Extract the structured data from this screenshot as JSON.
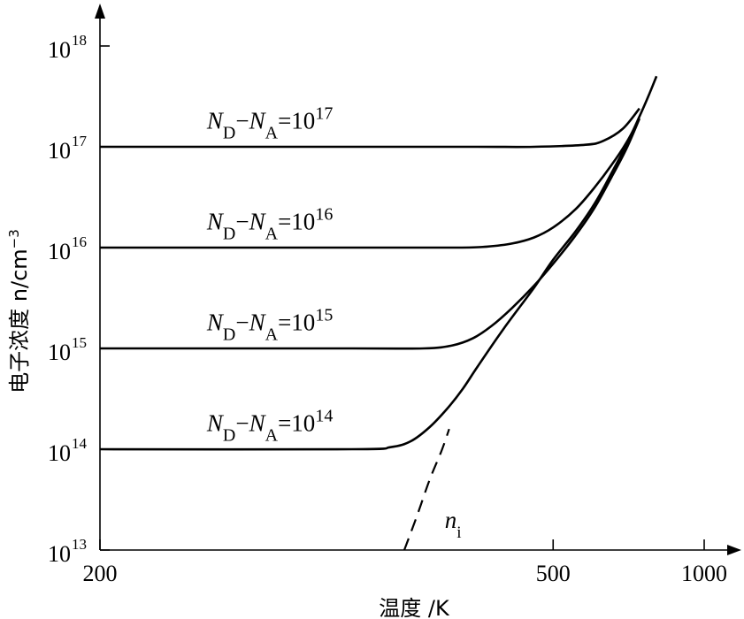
{
  "chart_data": {
    "type": "line",
    "xlabel": "温度 /K",
    "ylabel": "电子浓度 n/cm",
    "ylabel_exponent": "−3",
    "xlim": [
      200,
      1000
    ],
    "ylim_exponents": [
      13,
      18
    ],
    "y_scale": "log",
    "x_ticks": [
      {
        "value": 200,
        "label": "200"
      },
      {
        "value": 500,
        "label": "500"
      },
      {
        "value": 1000,
        "label": "1000"
      }
    ],
    "y_ticks": [
      {
        "exp": 13,
        "base": "10",
        "sup": "13"
      },
      {
        "exp": 14,
        "base": "10",
        "sup": "14"
      },
      {
        "exp": 15,
        "base": "10",
        "sup": "15"
      },
      {
        "exp": 16,
        "base": "10",
        "sup": "16"
      },
      {
        "exp": 17,
        "base": "10",
        "sup": "17"
      },
      {
        "exp": 18,
        "base": "10",
        "sup": "18"
      }
    ],
    "series": [
      {
        "label_parts": {
          "n1": "N",
          "s1": "D",
          "minus": "−",
          "n2": "N",
          "s2": "A",
          "eq": "=10",
          "sup": "17"
        },
        "label_at": [
          233,
          17.18
        ],
        "style": "solid",
        "points": [
          [
            200,
            17.0
          ],
          [
            300,
            17.0
          ],
          [
            400,
            17.0
          ],
          [
            470,
            17.0
          ],
          [
            560,
            17.02
          ],
          [
            600,
            17.06
          ],
          [
            650,
            17.18
          ],
          [
            700,
            17.38
          ]
        ]
      },
      {
        "label_parts": {
          "n1": "N",
          "s1": "D",
          "minus": "−",
          "n2": "N",
          "s2": "A",
          "eq": "=10",
          "sup": "16"
        },
        "label_at": [
          233,
          16.18
        ],
        "style": "solid",
        "points": [
          [
            200,
            16.0
          ],
          [
            300,
            16.0
          ],
          [
            380,
            16.0
          ],
          [
            410,
            16.01
          ],
          [
            440,
            16.04
          ],
          [
            470,
            16.1
          ],
          [
            500,
            16.2
          ],
          [
            540,
            16.38
          ],
          [
            580,
            16.6
          ],
          [
            620,
            16.82
          ],
          [
            660,
            17.04
          ],
          [
            700,
            17.28
          ]
        ]
      },
      {
        "label_parts": {
          "n1": "N",
          "s1": "D",
          "minus": "−",
          "n2": "N",
          "s2": "A",
          "eq": "=10",
          "sup": "15"
        },
        "label_at": [
          233,
          15.18
        ],
        "style": "solid",
        "points": [
          [
            200,
            15.0
          ],
          [
            300,
            15.0
          ],
          [
            350,
            15.0
          ],
          [
            375,
            15.03
          ],
          [
            395,
            15.1
          ],
          [
            415,
            15.22
          ],
          [
            440,
            15.4
          ],
          [
            470,
            15.62
          ],
          [
            500,
            15.84
          ],
          [
            540,
            16.12
          ],
          [
            580,
            16.4
          ],
          [
            620,
            16.7
          ],
          [
            660,
            16.98
          ],
          [
            700,
            17.28
          ]
        ]
      },
      {
        "label_parts": {
          "n1": "N",
          "s1": "D",
          "minus": "−",
          "n2": "N",
          "s2": "A",
          "eq": "=10",
          "sup": "14"
        },
        "label_at": [
          233,
          14.18
        ],
        "style": "solid",
        "points": [
          [
            200,
            14.0
          ],
          [
            300,
            14.0
          ],
          [
            325,
            14.02
          ],
          [
            340,
            14.08
          ],
          [
            355,
            14.22
          ],
          [
            370,
            14.4
          ],
          [
            385,
            14.6
          ],
          [
            400,
            14.82
          ],
          [
            430,
            15.2
          ],
          [
            470,
            15.6
          ],
          [
            500,
            15.88
          ],
          [
            540,
            16.16
          ],
          [
            580,
            16.44
          ],
          [
            620,
            16.74
          ],
          [
            660,
            17.02
          ],
          [
            700,
            17.3
          ],
          [
            730,
            17.5
          ],
          [
            760,
            17.7
          ]
        ]
      },
      {
        "label": "n",
        "label_sub": "i",
        "label_at": [
          368,
          13.22
        ],
        "style": "dashed",
        "points": [
          [
            335,
            13.0
          ],
          [
            345,
            13.35
          ],
          [
            355,
            13.7
          ],
          [
            365,
            13.98
          ],
          [
            372,
            14.2
          ]
        ]
      }
    ]
  }
}
